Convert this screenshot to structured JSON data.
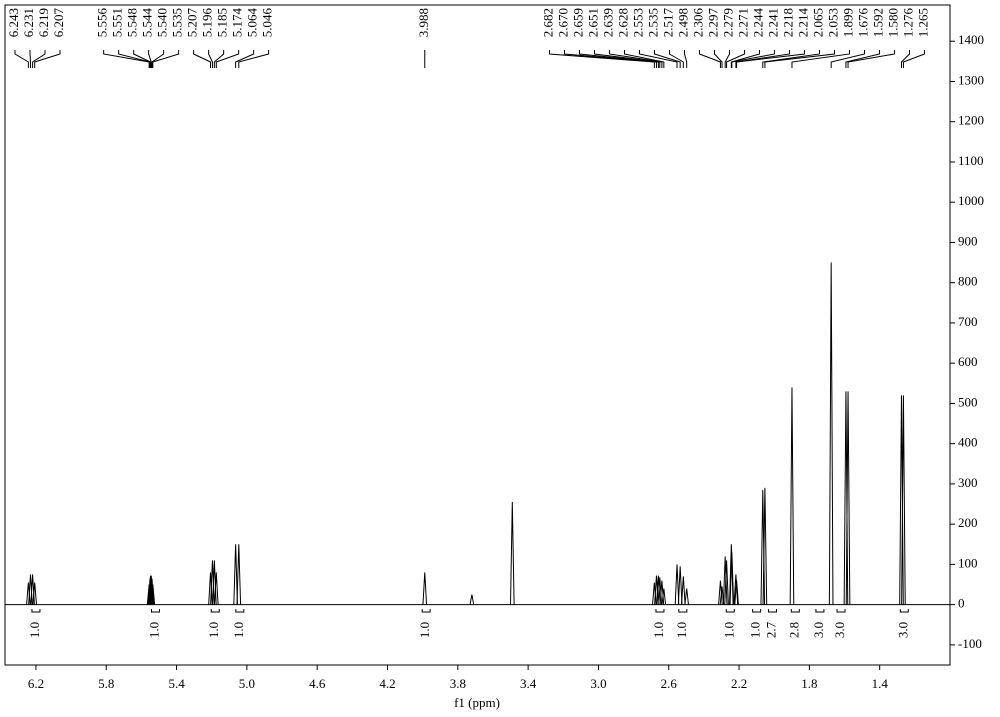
{
  "chart_data": {
    "type": "nmr",
    "x_axis_label": "f1 (ppm)",
    "xlim": [
      6.376,
      1.0
    ],
    "ylim": [
      -150,
      1490
    ],
    "xticks": [
      6.2,
      5.8,
      5.4,
      {
        "value": 5,
        "label": "5.0"
      },
      4.6,
      4.2,
      3.8,
      3.4,
      {
        "value": 3,
        "label": "3.0"
      },
      2.6,
      2.2,
      1.8,
      1.4
    ],
    "yticks": [
      -100,
      0,
      100,
      200,
      300,
      400,
      500,
      600,
      700,
      800,
      900,
      1000,
      1100,
      1200,
      1300,
      1400
    ],
    "color": "#000000",
    "peaks": {
      "x": [
        6.243,
        6.231,
        6.219,
        6.207,
        5.556,
        5.551,
        5.548,
        5.544,
        5.54,
        5.535,
        5.207,
        5.196,
        5.185,
        5.174,
        5.064,
        5.046,
        3.988,
        2.682,
        2.67,
        2.659,
        2.651,
        2.639,
        2.628,
        2.553,
        2.535,
        2.517,
        2.498,
        2.306,
        2.297,
        2.279,
        2.271,
        2.244,
        2.241,
        2.218,
        2.214,
        2.065,
        2.053,
        1.899,
        1.676,
        1.592,
        1.58,
        1.276,
        1.265
      ],
      "x_labels": [
        "6.243",
        "6.231",
        "6.219",
        "6.207",
        "5.556",
        "5.551",
        "5.548",
        "5.544",
        "5.540",
        "5.535",
        "5.207",
        "5.196",
        "5.185",
        "5.174",
        "5.064",
        "5.046",
        "3.988",
        "2.682",
        "2.670",
        "2.659",
        "2.651",
        "2.639",
        "2.628",
        "2.553",
        "2.535",
        "2.517",
        "2.498",
        "2.306",
        "2.297",
        "2.279",
        "2.271",
        "2.244",
        "2.241",
        "2.218",
        "2.214",
        "2.065",
        "2.053",
        "1.899",
        "1.676",
        "1.592",
        "1.580",
        "1.276",
        "1.265"
      ],
      "values": [
        55,
        75,
        75,
        55,
        50,
        65,
        72,
        72,
        65,
        50,
        80,
        110,
        110,
        80,
        150,
        150,
        80,
        55,
        72,
        72,
        68,
        60,
        40,
        100,
        95,
        70,
        40,
        60,
        45,
        120,
        110,
        150,
        130,
        75,
        60,
        285,
        290,
        540,
        850,
        530,
        530,
        520,
        520
      ]
    },
    "unlabeled_peaks": {
      "x": [
        3.72,
        3.49
      ],
      "values": [
        25,
        255
      ]
    },
    "integrals": {
      "x": [
        6.2,
        5.52,
        5.18,
        5.04,
        3.98,
        2.65,
        2.52,
        2.25,
        2.1,
        2.01,
        1.88,
        1.74,
        1.62,
        1.26
      ],
      "values": [
        1,
        1,
        1,
        1,
        1,
        1,
        1,
        1,
        1,
        2.7,
        2.8,
        3,
        3,
        3
      ],
      "value_labels": [
        "1.0",
        "1.0",
        "1.0",
        "1.0",
        "1.0",
        "1.0",
        "1.0",
        "1.0",
        "1.0",
        "2.7",
        "2.8",
        "3.0",
        "3.0",
        "3.0"
      ]
    }
  }
}
